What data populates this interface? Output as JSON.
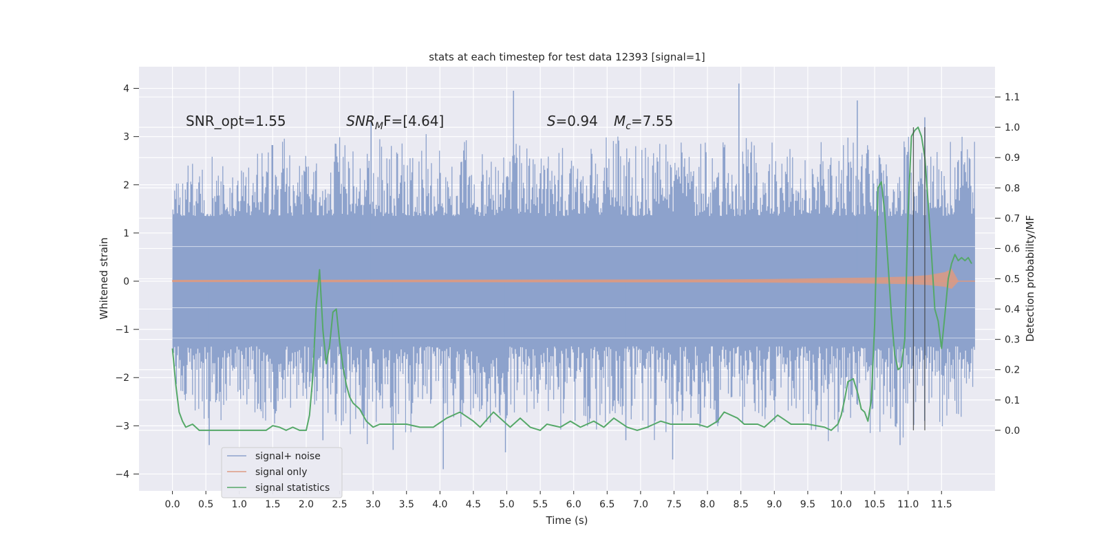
{
  "chart_data": {
    "type": "line",
    "title": "stats at each timestep for test data 12393 [signal=1]",
    "xlabel": "Time (s)",
    "ylabel": "Whitened strain",
    "y2label": "Detection probability/MF",
    "xlim": [
      -0.5,
      12.3
    ],
    "ylim": [
      -4.35,
      4.45
    ],
    "y2lim": [
      -0.2,
      1.2
    ],
    "xticks": [
      0.0,
      0.5,
      1.0,
      1.5,
      2.0,
      2.5,
      3.0,
      3.5,
      4.0,
      4.5,
      5.0,
      5.5,
      6.0,
      6.5,
      7.0,
      7.5,
      8.0,
      8.5,
      9.0,
      9.5,
      10.0,
      10.5,
      11.0,
      11.5
    ],
    "xtick_labels": [
      "0.0",
      "0.5",
      "1.0",
      "1.5",
      "2.0",
      "2.5",
      "3.0",
      "3.5",
      "4.0",
      "4.5",
      "5.0",
      "5.5",
      "6.0",
      "6.5",
      "7.0",
      "7.5",
      "8.0",
      "8.5",
      "9.0",
      "9.5",
      "10.0",
      "10.5",
      "11.0",
      "11.5"
    ],
    "yticks": [
      -4,
      -3,
      -2,
      -1,
      0,
      1,
      2,
      3,
      4
    ],
    "ytick_labels": [
      "−4",
      "−3",
      "−2",
      "−1",
      "0",
      "1",
      "2",
      "3",
      "4"
    ],
    "y2ticks": [
      0.0,
      0.1,
      0.2,
      0.3,
      0.4,
      0.5,
      0.6,
      0.7,
      0.8,
      0.9,
      1.0,
      1.1
    ],
    "y2tick_labels": [
      "0.0",
      "0.1",
      "0.2",
      "0.3",
      "0.4",
      "0.5",
      "0.6",
      "0.7",
      "0.8",
      "0.9",
      "1.0",
      "1.1"
    ],
    "grid": true,
    "legend_position": "lower-left",
    "annotations": [
      {
        "text": "SNR_opt=1.55",
        "x": 0.2
      },
      {
        "text": "SNR",
        "sub": "M",
        "tail": "F=[4.64]",
        "x": 2.6,
        "italic_head": true
      },
      {
        "text": "S",
        "tail": "=0.94",
        "x": 5.6,
        "italic_head": true
      },
      {
        "text": "M",
        "sub": "c",
        "tail": "=7.55",
        "x": 6.6,
        "italic_head": true
      }
    ],
    "vlines": [
      {
        "x": 11.08,
        "y2_range": [
          0.0,
          1.0
        ]
      },
      {
        "x": 11.25,
        "y2_range": [
          0.0,
          1.0
        ]
      }
    ],
    "series": [
      {
        "name": "signal+ noise",
        "color": "#8da2cc",
        "x_range": [
          0.0,
          12.0
        ],
        "core_band": [
          -1.35,
          1.35
        ],
        "envelope_hi": [
          2.2,
          2.5,
          2.6,
          2.4,
          2.3,
          2.5,
          2.7,
          2.9,
          3.1,
          2.8,
          2.7,
          2.9,
          3.0,
          2.8,
          2.7,
          3.0,
          3.1,
          2.9,
          3.3,
          2.8,
          2.9,
          3.0,
          2.7,
          2.8,
          2.9,
          3.1,
          2.8,
          2.7,
          2.9,
          3.0,
          2.8,
          2.9,
          3.0,
          3.1,
          3.0,
          2.8,
          2.9,
          2.8,
          2.9,
          3.0,
          2.7,
          2.9,
          3.0,
          2.9,
          3.2,
          3.0,
          2.8,
          2.7,
          2.9,
          3.0,
          3.0,
          2.9,
          2.8,
          2.7,
          2.9,
          3.0,
          2.8,
          2.7,
          2.9,
          3.0
        ],
        "envelope_lo": [
          -2.5,
          -2.7,
          -3.0,
          -3.1,
          -2.8,
          -2.6,
          -2.9,
          -3.0,
          -2.9,
          -2.7,
          -2.6,
          -2.8,
          -3.0,
          -3.3,
          -3.5,
          -3.0,
          -3.1,
          -3.3,
          -2.9,
          -2.8,
          -3.0,
          -3.1,
          -3.2,
          -3.0,
          -2.9,
          -2.8,
          -2.9,
          -3.0,
          -2.8,
          -3.2,
          -2.9,
          -3.1,
          -3.0,
          -2.8,
          -2.9,
          -3.1,
          -3.3,
          -2.9,
          -3.0,
          -3.2,
          -3.1,
          -2.9,
          -3.0,
          -2.8,
          -3.0,
          -3.1,
          -2.9,
          -3.2,
          -3.1,
          -3.4,
          -3.3,
          -3.0,
          -3.2,
          -3.1,
          -3.3,
          -3.2,
          -3.0,
          -3.1,
          -2.9,
          -2.6
        ],
        "spikes": [
          {
            "x": 5.1,
            "y": 3.95
          },
          {
            "x": 8.47,
            "y": 4.1
          },
          {
            "x": 10.24,
            "y": 3.75
          },
          {
            "x": 11.25,
            "y": 3.4
          },
          {
            "x": 2.97,
            "y": 3.3
          },
          {
            "x": 4.05,
            "y": -3.9
          },
          {
            "x": 7.48,
            "y": -3.7
          },
          {
            "x": 3.3,
            "y": -3.5
          },
          {
            "x": 4.98,
            "y": -3.55
          },
          {
            "x": 0.55,
            "y": -3.4
          },
          {
            "x": 10.88,
            "y": -3.4
          },
          {
            "x": 6.78,
            "y": -3.3
          },
          {
            "x": 2.25,
            "y": -3.3
          }
        ]
      },
      {
        "name": "signal only",
        "color": "#dd9a82",
        "x": [
          0.0,
          8.0,
          9.0,
          10.0,
          10.5,
          11.0,
          11.3,
          11.55,
          11.65,
          11.75,
          12.0
        ],
        "amplitude": [
          0.02,
          0.03,
          0.04,
          0.06,
          0.07,
          0.09,
          0.12,
          0.18,
          0.25,
          0.0,
          0.0
        ]
      },
      {
        "name": "signal statistics",
        "color": "#55a868",
        "axis": "right",
        "x": [
          0.0,
          0.05,
          0.1,
          0.15,
          0.2,
          0.3,
          0.4,
          0.5,
          0.6,
          0.7,
          0.8,
          0.9,
          1.0,
          1.2,
          1.4,
          1.5,
          1.6,
          1.7,
          1.8,
          1.9,
          2.0,
          2.05,
          2.1,
          2.15,
          2.2,
          2.25,
          2.3,
          2.35,
          2.4,
          2.45,
          2.5,
          2.55,
          2.6,
          2.65,
          2.7,
          2.8,
          2.9,
          3.0,
          3.1,
          3.2,
          3.3,
          3.5,
          3.7,
          3.9,
          4.1,
          4.3,
          4.5,
          4.6,
          4.8,
          4.9,
          5.05,
          5.2,
          5.35,
          5.5,
          5.6,
          5.8,
          5.95,
          6.1,
          6.3,
          6.45,
          6.6,
          6.8,
          6.95,
          7.1,
          7.3,
          7.45,
          7.6,
          7.85,
          8.0,
          8.15,
          8.25,
          8.45,
          8.55,
          8.75,
          8.85,
          9.0,
          9.05,
          9.25,
          9.5,
          9.75,
          9.85,
          9.95,
          10.0,
          10.05,
          10.1,
          10.18,
          10.25,
          10.3,
          10.35,
          10.4,
          10.45,
          10.5,
          10.55,
          10.6,
          10.65,
          10.7,
          10.75,
          10.8,
          10.85,
          10.9,
          10.95,
          11.0,
          11.05,
          11.1,
          11.15,
          11.2,
          11.25,
          11.3,
          11.35,
          11.4,
          11.45,
          11.5,
          11.55,
          11.6,
          11.65,
          11.7,
          11.75,
          11.8,
          11.85,
          11.9,
          11.95
        ],
        "values": [
          0.27,
          0.15,
          0.06,
          0.03,
          0.01,
          0.02,
          0.0,
          0.0,
          0.0,
          0.0,
          0.0,
          0.0,
          0.0,
          0.0,
          0.0,
          0.015,
          0.01,
          0.0,
          0.01,
          0.0,
          0.0,
          0.05,
          0.18,
          0.41,
          0.53,
          0.33,
          0.22,
          0.28,
          0.39,
          0.4,
          0.29,
          0.21,
          0.15,
          0.11,
          0.09,
          0.07,
          0.03,
          0.01,
          0.02,
          0.02,
          0.02,
          0.02,
          0.01,
          0.01,
          0.04,
          0.06,
          0.03,
          0.01,
          0.06,
          0.04,
          0.01,
          0.04,
          0.01,
          0.0,
          0.02,
          0.01,
          0.03,
          0.01,
          0.03,
          0.01,
          0.04,
          0.01,
          0.0,
          0.01,
          0.03,
          0.02,
          0.02,
          0.02,
          0.01,
          0.03,
          0.06,
          0.04,
          0.02,
          0.02,
          0.01,
          0.04,
          0.05,
          0.02,
          0.02,
          0.01,
          0.0,
          0.02,
          0.05,
          0.1,
          0.16,
          0.17,
          0.12,
          0.07,
          0.06,
          0.03,
          0.1,
          0.35,
          0.8,
          0.82,
          0.72,
          0.55,
          0.38,
          0.25,
          0.2,
          0.21,
          0.3,
          0.72,
          0.97,
          0.99,
          1.0,
          0.97,
          0.9,
          0.75,
          0.58,
          0.4,
          0.36,
          0.27,
          0.38,
          0.5,
          0.55,
          0.58,
          0.56,
          0.57,
          0.56,
          0.57,
          0.55
        ]
      }
    ]
  }
}
